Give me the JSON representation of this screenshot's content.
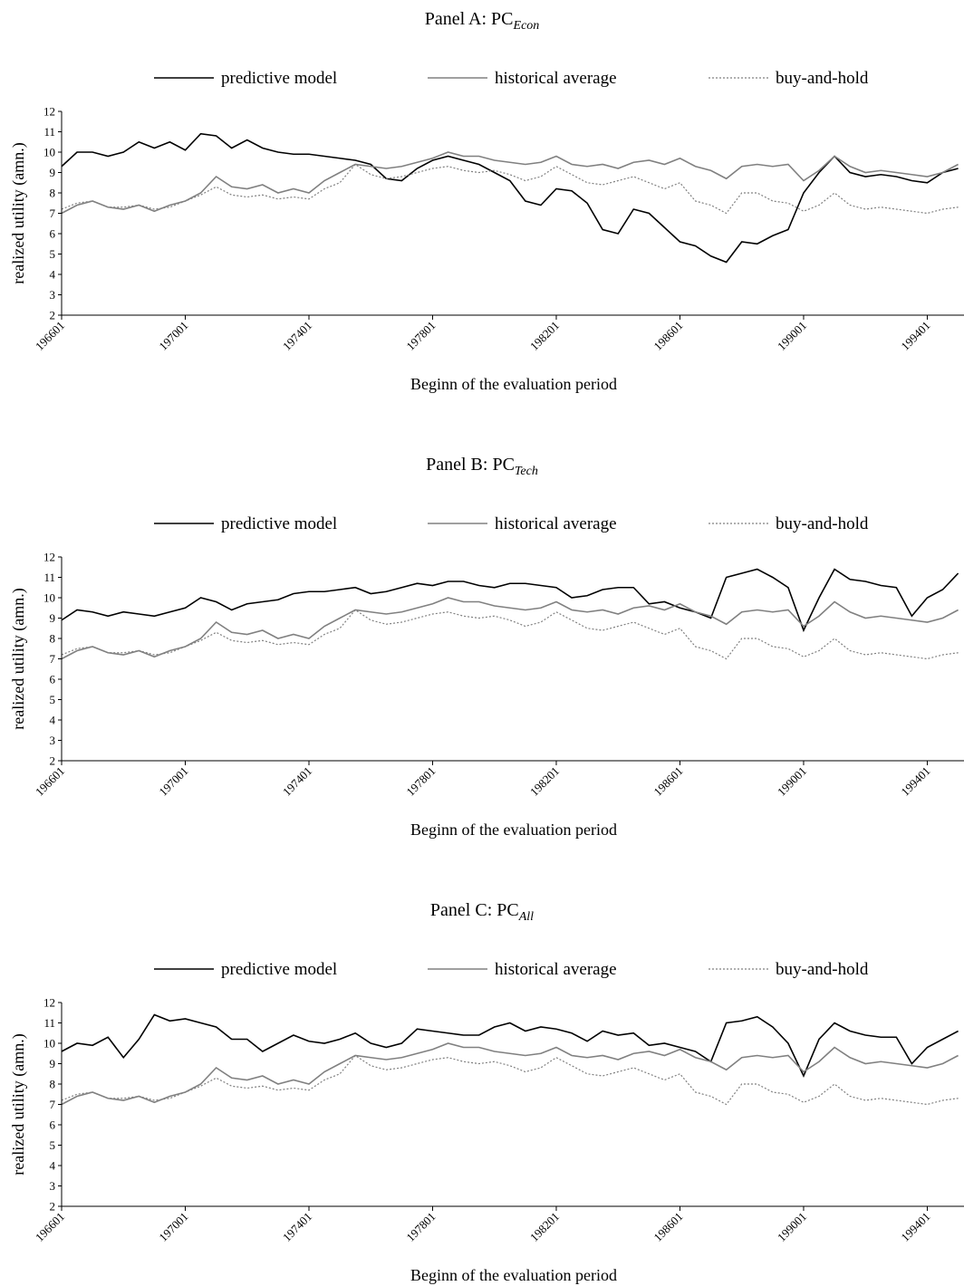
{
  "chart_data": [
    {
      "type": "line",
      "title": "Panel A: PC",
      "title_sub": "Econ",
      "x_label": "Beginn of the evaluation period",
      "y_label": "realized utility (amn.)",
      "xlim": [
        1966,
        1995.1
      ],
      "ylim": [
        2,
        12
      ],
      "xticks": [
        {
          "value": 1966,
          "label": "196601"
        },
        {
          "value": 1970,
          "label": "197001"
        },
        {
          "value": 1974,
          "label": "197401"
        },
        {
          "value": 1978,
          "label": "197801"
        },
        {
          "value": 1982,
          "label": "198201"
        },
        {
          "value": 1986,
          "label": "198601"
        },
        {
          "value": 1990,
          "label": "199001"
        },
        {
          "value": 1994,
          "label": "199401"
        }
      ],
      "yticks": [
        2,
        3,
        4,
        5,
        6,
        7,
        8,
        9,
        10,
        11,
        12
      ],
      "x": [
        1966,
        1966.5,
        1967,
        1967.5,
        1968,
        1968.5,
        1969,
        1969.5,
        1970,
        1970.5,
        1971,
        1971.5,
        1972,
        1972.5,
        1973,
        1973.5,
        1974,
        1974.5,
        1975,
        1975.5,
        1976,
        1976.5,
        1977,
        1977.5,
        1978,
        1978.5,
        1979,
        1979.5,
        1980,
        1980.5,
        1981,
        1981.5,
        1982,
        1982.5,
        1983,
        1983.5,
        1984,
        1984.5,
        1985,
        1985.5,
        1986,
        1986.5,
        1987,
        1987.5,
        1988,
        1988.5,
        1989,
        1989.5,
        1990,
        1990.5,
        1991,
        1991.5,
        1992,
        1992.5,
        1993,
        1993.5,
        1994,
        1994.5,
        1995
      ],
      "series": [
        {
          "name": "predictive model",
          "color": "#000000",
          "dashed": false,
          "values": [
            9.3,
            10.0,
            10.0,
            9.8,
            10.0,
            10.5,
            10.2,
            10.5,
            10.1,
            10.9,
            10.8,
            10.2,
            10.6,
            10.2,
            10.0,
            9.9,
            9.9,
            9.8,
            9.7,
            9.6,
            9.4,
            8.7,
            8.6,
            9.2,
            9.6,
            9.8,
            9.6,
            9.4,
            9.0,
            8.6,
            7.6,
            7.4,
            8.2,
            8.1,
            7.5,
            6.2,
            6.0,
            7.2,
            7.0,
            6.3,
            5.6,
            5.4,
            4.9,
            4.6,
            5.6,
            5.5,
            5.9,
            6.2,
            8.0,
            9.0,
            9.8,
            9.0,
            8.8,
            8.9,
            8.8,
            8.6,
            8.5,
            9.0,
            9.2
          ]
        },
        {
          "name": "historical average",
          "color": "#808080",
          "dashed": false,
          "values": [
            7.0,
            7.4,
            7.6,
            7.3,
            7.2,
            7.4,
            7.1,
            7.4,
            7.6,
            8.0,
            8.8,
            8.3,
            8.2,
            8.4,
            8.0,
            8.2,
            8.0,
            8.6,
            9.0,
            9.4,
            9.3,
            9.2,
            9.3,
            9.5,
            9.7,
            10.0,
            9.8,
            9.8,
            9.6,
            9.5,
            9.4,
            9.5,
            9.8,
            9.4,
            9.3,
            9.4,
            9.2,
            9.5,
            9.6,
            9.4,
            9.7,
            9.3,
            9.1,
            8.7,
            9.3,
            9.4,
            9.3,
            9.4,
            8.6,
            9.1,
            9.8,
            9.3,
            9.0,
            9.1,
            9.0,
            8.9,
            8.8,
            9.0,
            9.4
          ]
        },
        {
          "name": "buy-and-hold",
          "color": "#808080",
          "dashed": true,
          "values": [
            7.2,
            7.5,
            7.6,
            7.3,
            7.3,
            7.4,
            7.2,
            7.3,
            7.6,
            7.9,
            8.3,
            7.9,
            7.8,
            7.9,
            7.7,
            7.8,
            7.7,
            8.2,
            8.5,
            9.4,
            8.9,
            8.7,
            8.8,
            9.0,
            9.2,
            9.3,
            9.1,
            9.0,
            9.1,
            8.9,
            8.6,
            8.8,
            9.3,
            8.9,
            8.5,
            8.4,
            8.6,
            8.8,
            8.5,
            8.2,
            8.5,
            7.6,
            7.4,
            7.0,
            8.0,
            8.0,
            7.6,
            7.5,
            7.1,
            7.4,
            8.0,
            7.4,
            7.2,
            7.3,
            7.2,
            7.1,
            7.0,
            7.2,
            7.3
          ]
        }
      ]
    },
    {
      "type": "line",
      "title": "Panel B: PC",
      "title_sub": "Tech",
      "x_label": "Beginn of the evaluation period",
      "y_label": "realized utility (amn.)",
      "xlim": [
        1966,
        1995.1
      ],
      "ylim": [
        2,
        12
      ],
      "xticks": [
        {
          "value": 1966,
          "label": "196601"
        },
        {
          "value": 1970,
          "label": "197001"
        },
        {
          "value": 1974,
          "label": "197401"
        },
        {
          "value": 1978,
          "label": "197801"
        },
        {
          "value": 1982,
          "label": "198201"
        },
        {
          "value": 1986,
          "label": "198601"
        },
        {
          "value": 1990,
          "label": "199001"
        },
        {
          "value": 1994,
          "label": "199401"
        }
      ],
      "yticks": [
        2,
        3,
        4,
        5,
        6,
        7,
        8,
        9,
        10,
        11,
        12
      ],
      "x": [
        1966,
        1966.5,
        1967,
        1967.5,
        1968,
        1968.5,
        1969,
        1969.5,
        1970,
        1970.5,
        1971,
        1971.5,
        1972,
        1972.5,
        1973,
        1973.5,
        1974,
        1974.5,
        1975,
        1975.5,
        1976,
        1976.5,
        1977,
        1977.5,
        1978,
        1978.5,
        1979,
        1979.5,
        1980,
        1980.5,
        1981,
        1981.5,
        1982,
        1982.5,
        1983,
        1983.5,
        1984,
        1984.5,
        1985,
        1985.5,
        1986,
        1986.5,
        1987,
        1987.5,
        1988,
        1988.5,
        1989,
        1989.5,
        1990,
        1990.5,
        1991,
        1991.5,
        1992,
        1992.5,
        1993,
        1993.5,
        1994,
        1994.5,
        1995
      ],
      "series": [
        {
          "name": "predictive model",
          "color": "#000000",
          "dashed": false,
          "values": [
            8.9,
            9.4,
            9.3,
            9.1,
            9.3,
            9.2,
            9.1,
            9.3,
            9.5,
            10.0,
            9.8,
            9.4,
            9.7,
            9.8,
            9.9,
            10.2,
            10.3,
            10.3,
            10.4,
            10.5,
            10.2,
            10.3,
            10.5,
            10.7,
            10.6,
            10.8,
            10.8,
            10.6,
            10.5,
            10.7,
            10.7,
            10.6,
            10.5,
            10.0,
            10.1,
            10.4,
            10.5,
            10.5,
            9.7,
            9.8,
            9.5,
            9.3,
            9.0,
            11.0,
            11.2,
            11.4,
            11.0,
            10.5,
            8.4,
            10.0,
            11.4,
            10.9,
            10.8,
            10.6,
            10.5,
            9.1,
            10.0,
            10.4,
            11.2
          ]
        },
        {
          "name": "historical average",
          "color": "#808080",
          "dashed": false,
          "values": [
            7.0,
            7.4,
            7.6,
            7.3,
            7.2,
            7.4,
            7.1,
            7.4,
            7.6,
            8.0,
            8.8,
            8.3,
            8.2,
            8.4,
            8.0,
            8.2,
            8.0,
            8.6,
            9.0,
            9.4,
            9.3,
            9.2,
            9.3,
            9.5,
            9.7,
            10.0,
            9.8,
            9.8,
            9.6,
            9.5,
            9.4,
            9.5,
            9.8,
            9.4,
            9.3,
            9.4,
            9.2,
            9.5,
            9.6,
            9.4,
            9.7,
            9.3,
            9.1,
            8.7,
            9.3,
            9.4,
            9.3,
            9.4,
            8.6,
            9.1,
            9.8,
            9.3,
            9.0,
            9.1,
            9.0,
            8.9,
            8.8,
            9.0,
            9.4
          ]
        },
        {
          "name": "buy-and-hold",
          "color": "#808080",
          "dashed": true,
          "values": [
            7.2,
            7.5,
            7.6,
            7.3,
            7.3,
            7.4,
            7.2,
            7.3,
            7.6,
            7.9,
            8.3,
            7.9,
            7.8,
            7.9,
            7.7,
            7.8,
            7.7,
            8.2,
            8.5,
            9.4,
            8.9,
            8.7,
            8.8,
            9.0,
            9.2,
            9.3,
            9.1,
            9.0,
            9.1,
            8.9,
            8.6,
            8.8,
            9.3,
            8.9,
            8.5,
            8.4,
            8.6,
            8.8,
            8.5,
            8.2,
            8.5,
            7.6,
            7.4,
            7.0,
            8.0,
            8.0,
            7.6,
            7.5,
            7.1,
            7.4,
            8.0,
            7.4,
            7.2,
            7.3,
            7.2,
            7.1,
            7.0,
            7.2,
            7.3
          ]
        }
      ]
    },
    {
      "type": "line",
      "title": "Panel C: PC",
      "title_sub": "All",
      "x_label": "Beginn of the evaluation period",
      "y_label": "realized utility (amn.)",
      "xlim": [
        1966,
        1995.1
      ],
      "ylim": [
        2,
        12
      ],
      "xticks": [
        {
          "value": 1966,
          "label": "196601"
        },
        {
          "value": 1970,
          "label": "197001"
        },
        {
          "value": 1974,
          "label": "197401"
        },
        {
          "value": 1978,
          "label": "197801"
        },
        {
          "value": 1982,
          "label": "198201"
        },
        {
          "value": 1986,
          "label": "198601"
        },
        {
          "value": 1990,
          "label": "199001"
        },
        {
          "value": 1994,
          "label": "199401"
        }
      ],
      "yticks": [
        2,
        3,
        4,
        5,
        6,
        7,
        8,
        9,
        10,
        11,
        12
      ],
      "x": [
        1966,
        1966.5,
        1967,
        1967.5,
        1968,
        1968.5,
        1969,
        1969.5,
        1970,
        1970.5,
        1971,
        1971.5,
        1972,
        1972.5,
        1973,
        1973.5,
        1974,
        1974.5,
        1975,
        1975.5,
        1976,
        1976.5,
        1977,
        1977.5,
        1978,
        1978.5,
        1979,
        1979.5,
        1980,
        1980.5,
        1981,
        1981.5,
        1982,
        1982.5,
        1983,
        1983.5,
        1984,
        1984.5,
        1985,
        1985.5,
        1986,
        1986.5,
        1987,
        1987.5,
        1988,
        1988.5,
        1989,
        1989.5,
        1990,
        1990.5,
        1991,
        1991.5,
        1992,
        1992.5,
        1993,
        1993.5,
        1994,
        1994.5,
        1995
      ],
      "series": [
        {
          "name": "predictive model",
          "color": "#000000",
          "dashed": false,
          "values": [
            9.6,
            10.0,
            9.9,
            10.3,
            9.3,
            10.2,
            11.4,
            11.1,
            11.2,
            11.0,
            10.8,
            10.2,
            10.2,
            9.6,
            10.0,
            10.4,
            10.1,
            10.0,
            10.2,
            10.5,
            10.0,
            9.8,
            10.0,
            10.7,
            10.6,
            10.5,
            10.4,
            10.4,
            10.8,
            11.0,
            10.6,
            10.8,
            10.7,
            10.5,
            10.1,
            10.6,
            10.4,
            10.5,
            9.9,
            10.0,
            9.8,
            9.6,
            9.1,
            11.0,
            11.1,
            11.3,
            10.8,
            10.0,
            8.4,
            10.2,
            11.0,
            10.6,
            10.4,
            10.3,
            10.3,
            9.0,
            9.8,
            10.2,
            10.6
          ]
        },
        {
          "name": "historical average",
          "color": "#808080",
          "dashed": false,
          "values": [
            7.0,
            7.4,
            7.6,
            7.3,
            7.2,
            7.4,
            7.1,
            7.4,
            7.6,
            8.0,
            8.8,
            8.3,
            8.2,
            8.4,
            8.0,
            8.2,
            8.0,
            8.6,
            9.0,
            9.4,
            9.3,
            9.2,
            9.3,
            9.5,
            9.7,
            10.0,
            9.8,
            9.8,
            9.6,
            9.5,
            9.4,
            9.5,
            9.8,
            9.4,
            9.3,
            9.4,
            9.2,
            9.5,
            9.6,
            9.4,
            9.7,
            9.3,
            9.1,
            8.7,
            9.3,
            9.4,
            9.3,
            9.4,
            8.6,
            9.1,
            9.8,
            9.3,
            9.0,
            9.1,
            9.0,
            8.9,
            8.8,
            9.0,
            9.4
          ]
        },
        {
          "name": "buy-and-hold",
          "color": "#808080",
          "dashed": true,
          "values": [
            7.2,
            7.5,
            7.6,
            7.3,
            7.3,
            7.4,
            7.2,
            7.3,
            7.6,
            7.9,
            8.3,
            7.9,
            7.8,
            7.9,
            7.7,
            7.8,
            7.7,
            8.2,
            8.5,
            9.4,
            8.9,
            8.7,
            8.8,
            9.0,
            9.2,
            9.3,
            9.1,
            9.0,
            9.1,
            8.9,
            8.6,
            8.8,
            9.3,
            8.9,
            8.5,
            8.4,
            8.6,
            8.8,
            8.5,
            8.2,
            8.5,
            7.6,
            7.4,
            7.0,
            8.0,
            8.0,
            7.6,
            7.5,
            7.1,
            7.4,
            8.0,
            7.4,
            7.2,
            7.3,
            7.2,
            7.1,
            7.0,
            7.2,
            7.3
          ]
        }
      ]
    }
  ]
}
